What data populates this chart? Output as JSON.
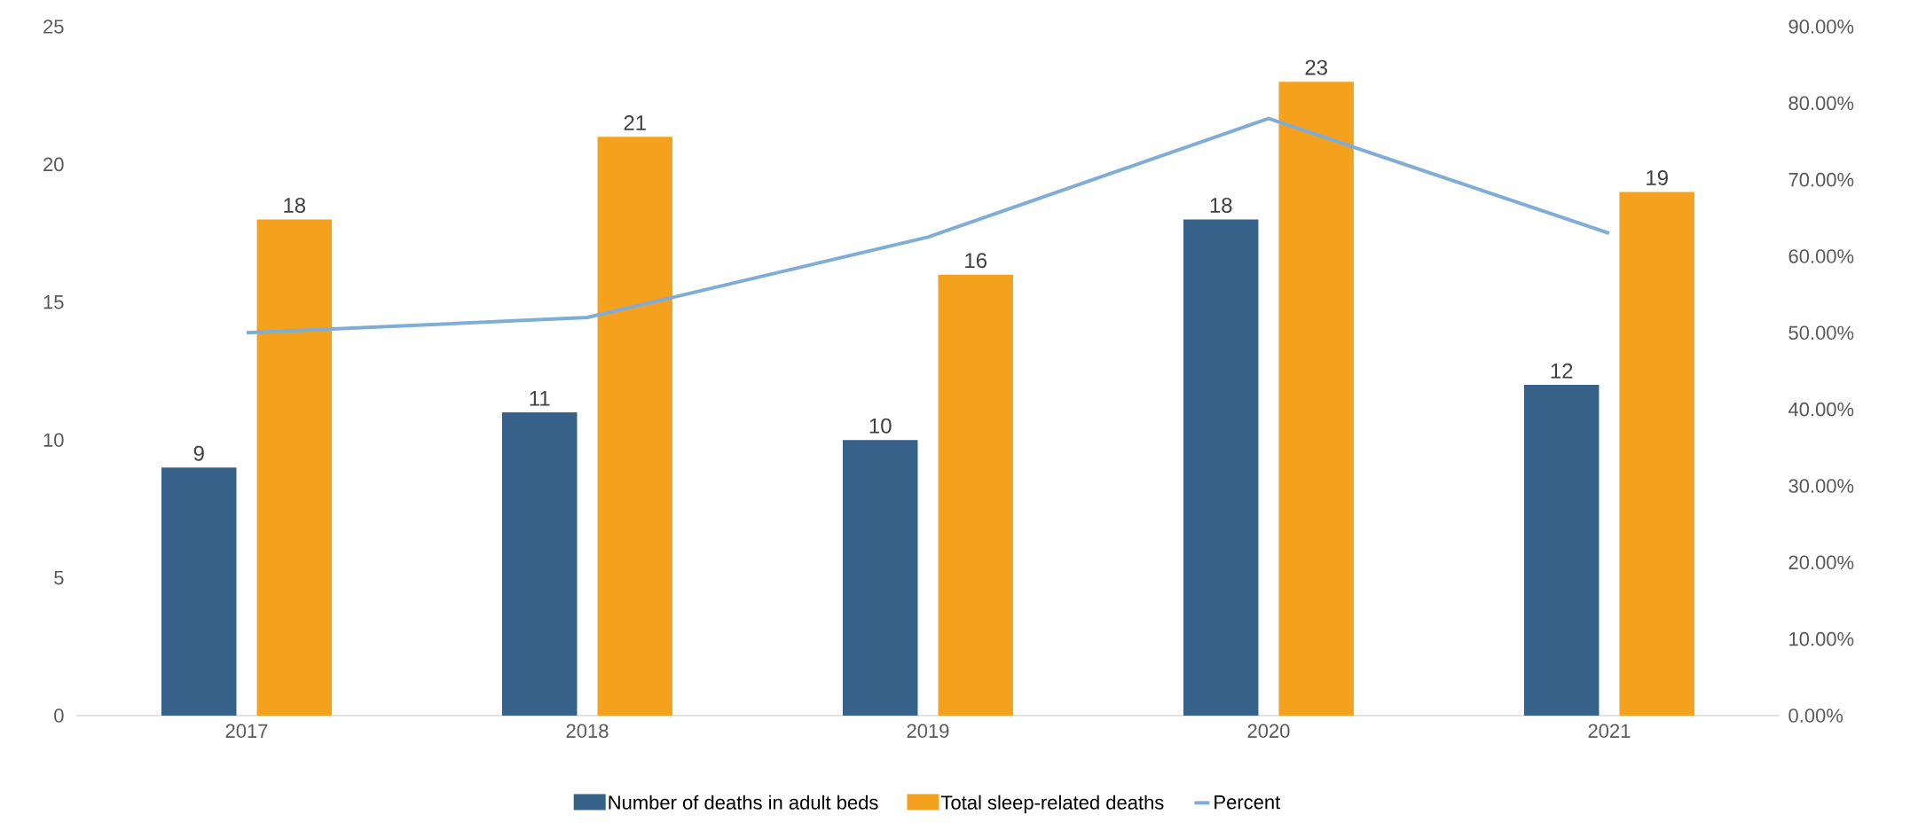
{
  "chart_data": {
    "type": "bar",
    "categories": [
      "2017",
      "2018",
      "2019",
      "2020",
      "2021"
    ],
    "series": [
      {
        "name": "Number of deaths in adult beds",
        "color": "#366189",
        "values": [
          9,
          11,
          10,
          18,
          12
        ],
        "value_labels": [
          "9",
          "11",
          "10",
          "18",
          "12"
        ]
      },
      {
        "name": "Total sleep-related deaths",
        "color": "#f4a21e",
        "values": [
          18,
          21,
          16,
          23,
          19
        ],
        "value_labels": [
          "18",
          "21",
          "16",
          "23",
          "19"
        ]
      },
      {
        "name": "Percent",
        "type": "line",
        "axis": "y2",
        "color": "#7fadd6",
        "values": [
          50,
          52,
          62.5,
          78,
          63
        ]
      }
    ],
    "ylim": [
      0,
      25
    ],
    "yticks": [
      0,
      5,
      10,
      15,
      20,
      25
    ],
    "y2lim": [
      0,
      90
    ],
    "y2ticks": [
      {
        "value": 0,
        "label": "0.00%"
      },
      {
        "value": 10,
        "label": "10.00%"
      },
      {
        "value": 20,
        "label": "20.00%"
      },
      {
        "value": 30,
        "label": "30.00%"
      },
      {
        "value": 40,
        "label": "40.00%"
      },
      {
        "value": 50,
        "label": "50.00%"
      },
      {
        "value": 60,
        "label": "60.00%"
      },
      {
        "value": 70,
        "label": "70.00%"
      },
      {
        "value": 80,
        "label": "80.00%"
      },
      {
        "value": 90,
        "label": "90.00%"
      }
    ],
    "legend": "bottom",
    "grid": false,
    "marker": "none",
    "line_style": "solid"
  }
}
